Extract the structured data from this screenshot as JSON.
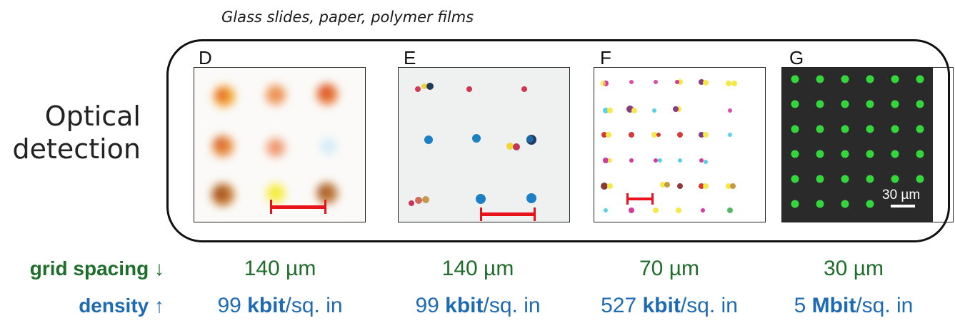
{
  "subtitle": "Glass slides, paper, polymer films",
  "row_label_line1": "Optical",
  "row_label_line2": "detection",
  "panels": [
    {
      "letter": "D",
      "spacing": "140 µm",
      "density_value": "99 ",
      "density_unit": "kbit",
      "density_suffix": "/sq. in"
    },
    {
      "letter": "E",
      "spacing": "140 µm",
      "density_value": "99 ",
      "density_unit": "kbit",
      "density_suffix": "/sq. in"
    },
    {
      "letter": "F",
      "spacing": "70 µm",
      "density_value": "527 ",
      "density_unit": "kbit",
      "density_suffix": "/sq. in"
    },
    {
      "letter": "G",
      "spacing": "30 µm",
      "density_value": "5 ",
      "density_unit": "Mbit",
      "density_suffix": "/sq. in",
      "scale_label": "30 µm"
    }
  ],
  "metrics": {
    "grid_label": "grid spacing ↓",
    "density_label": "density ↑"
  },
  "colors": {
    "green_text": "#1f6d2a",
    "blue_text": "#1f6bb3",
    "scale_bar_red": "#e8131b",
    "panel_g_dot": "#35d63b"
  }
}
